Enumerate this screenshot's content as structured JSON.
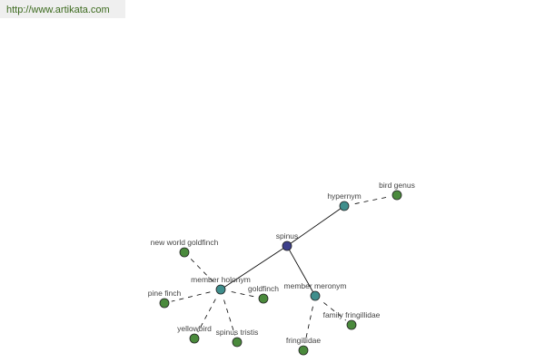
{
  "watermark": {
    "url": "http://www.artikata.com"
  },
  "colors": {
    "root": "#3c3f8a",
    "relation": "#3f8e8c",
    "leaf": "#4a8a3c",
    "edge": "#000000"
  },
  "graph": {
    "nodes": [
      {
        "id": "spinus",
        "label": "spinus",
        "type": "root"
      },
      {
        "id": "hypernym",
        "label": "hypernym",
        "type": "relation"
      },
      {
        "id": "bird_genus",
        "label": "bird genus",
        "type": "leaf"
      },
      {
        "id": "member_holonym",
        "label": "member holonym",
        "type": "relation"
      },
      {
        "id": "new_world_goldfinch",
        "label": "new world goldfinch",
        "type": "leaf"
      },
      {
        "id": "pine_finch",
        "label": "pine finch",
        "type": "leaf"
      },
      {
        "id": "goldfinch",
        "label": "goldfinch",
        "type": "leaf"
      },
      {
        "id": "yellowbird",
        "label": "yellowbird",
        "type": "leaf"
      },
      {
        "id": "spinus_tristis",
        "label": "spinus tristis",
        "type": "leaf"
      },
      {
        "id": "member_meronym",
        "label": "member meronym",
        "type": "relation"
      },
      {
        "id": "family_fringillidae",
        "label": "family fringillidae",
        "type": "leaf"
      },
      {
        "id": "fringillidae",
        "label": "fringillidae",
        "type": "leaf"
      }
    ],
    "edges": [
      {
        "from": "spinus",
        "to": "hypernym",
        "style": "solid"
      },
      {
        "from": "spinus",
        "to": "member_holonym",
        "style": "solid"
      },
      {
        "from": "spinus",
        "to": "member_meronym",
        "style": "solid"
      },
      {
        "from": "hypernym",
        "to": "bird_genus",
        "style": "dashed"
      },
      {
        "from": "member_holonym",
        "to": "new_world_goldfinch",
        "style": "dashed"
      },
      {
        "from": "member_holonym",
        "to": "pine_finch",
        "style": "dashed"
      },
      {
        "from": "member_holonym",
        "to": "goldfinch",
        "style": "dashed"
      },
      {
        "from": "member_holonym",
        "to": "yellowbird",
        "style": "dashed"
      },
      {
        "from": "member_holonym",
        "to": "spinus_tristis",
        "style": "dashed"
      },
      {
        "from": "member_meronym",
        "to": "family_fringillidae",
        "style": "dashed"
      },
      {
        "from": "member_meronym",
        "to": "fringillidae",
        "style": "dashed"
      }
    ]
  }
}
